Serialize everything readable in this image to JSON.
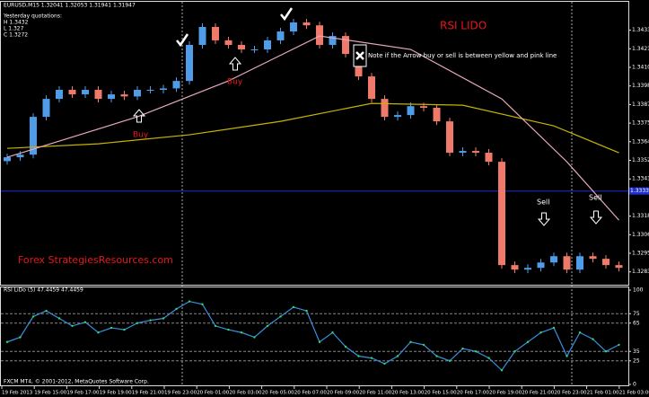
{
  "window_title": "EURUSD,M15  1.32041 1.32053 1.31941 1.31947",
  "yesterday": [
    "Yesterday quotations:",
    "H 1.3432",
    "L 1.327",
    "C 1.3272"
  ],
  "title": "RSI LIDO",
  "note": "Note if the Arrow buy or sell is between yellow and pink line",
  "buy_labels": [
    "Buy",
    "Buy"
  ],
  "sell_labels": [
    "Sell",
    "Sell"
  ],
  "watermark": "Forex StrategiesResources.com",
  "copyright": "FXCM MT4, © 2001-2012, MetaQuotes Software Corp.",
  "price_chart": {
    "type": "candlestick",
    "ylim": [
      1.3275,
      1.3445
    ],
    "yticks": [
      {
        "value": 1.3433,
        "label": "1.34330"
      },
      {
        "value": 1.34215,
        "label": "1.34215"
      },
      {
        "value": 1.341,
        "label": "1.34100"
      },
      {
        "value": 1.33985,
        "label": "1.33985"
      },
      {
        "value": 1.3387,
        "label": "1.33870"
      },
      {
        "value": 1.33755,
        "label": "1.33755"
      },
      {
        "value": 1.3364,
        "label": "1.33640"
      },
      {
        "value": 1.33525,
        "label": "1.33525"
      },
      {
        "value": 1.3341,
        "label": "1.33410"
      },
      {
        "value": 1.3318,
        "label": "1.33180"
      },
      {
        "value": 1.33065,
        "label": "1.33065"
      },
      {
        "value": 1.3295,
        "label": "1.32950"
      },
      {
        "value": 1.32835,
        "label": "1.32835"
      }
    ],
    "hline": {
      "value": 1.33335,
      "label": "1.33335",
      "color": "#1f2fd0"
    },
    "up_color": "#4f9de8",
    "down_color": "#f07a6a",
    "first_open": 1.3352,
    "closes": [
      1.33544,
      1.3356,
      1.33794,
      1.33905,
      1.33961,
      1.33933,
      1.33961,
      1.33905,
      1.33933,
      1.3392,
      1.33961,
      1.33961,
      1.3397,
      1.34016,
      1.34239,
      1.3435,
      1.34267,
      1.34239,
      1.34211,
      1.34211,
      1.34267,
      1.34322,
      1.34378,
      1.3436,
      1.34239,
      1.34294,
      1.34183,
      1.34044,
      1.33905,
      1.33794,
      1.33805,
      1.3386,
      1.3385,
      1.33766,
      1.33572,
      1.33583,
      1.33572,
      1.33516,
      1.32877,
      1.32849,
      1.3286,
      1.32893,
      1.32932,
      1.32849,
      1.32932,
      1.32916,
      1.32877,
      1.3286
    ],
    "lines": [
      {
        "color": "#c8b400",
        "x": [
          0,
          7,
          14,
          21,
          28,
          35,
          42,
          47
        ],
        "values": [
          1.33599,
          1.33627,
          1.33683,
          1.33766,
          1.33877,
          1.33866,
          1.33738,
          1.33572
        ]
      },
      {
        "color": "#e8a8c0",
        "x": [
          0,
          10,
          17,
          24,
          31,
          38,
          43,
          47
        ],
        "values": [
          1.33544,
          1.33794,
          1.34016,
          1.34294,
          1.34211,
          1.33905,
          1.33516,
          1.33155
        ]
      }
    ]
  },
  "rsi": {
    "type": "line",
    "title": "RSI LiDo (5) 47.4459 47.4459",
    "ylim": [
      0,
      100
    ],
    "yticks": [
      0,
      25,
      35,
      65,
      75,
      100
    ],
    "levels": [
      25,
      35,
      65,
      75
    ],
    "color": "#3a8fe0",
    "dot_color": "#22dd66",
    "values": [
      45,
      50,
      72,
      78,
      70,
      62,
      66,
      55,
      60,
      58,
      65,
      68,
      70,
      80,
      88,
      85,
      62,
      58,
      55,
      50,
      62,
      72,
      82,
      78,
      45,
      55,
      40,
      30,
      28,
      22,
      30,
      45,
      42,
      30,
      25,
      38,
      35,
      28,
      15,
      35,
      45,
      55,
      60,
      30,
      55,
      48,
      35,
      42
    ]
  },
  "x_labels": [
    "19 Feb 2013",
    "19 Feb 15:00",
    "19 Feb 17:00",
    "19 Feb 19:00",
    "19 Feb 21:00",
    "19 Feb 23:00",
    "20 Feb 01:00",
    "20 Feb 03:00",
    "20 Feb 05:00",
    "20 Feb 07:00",
    "20 Feb 09:00",
    "20 Feb 11:00",
    "20 Feb 13:00",
    "20 Feb 15:00",
    "20 Feb 17:00",
    "20 Feb 19:00",
    "20 Feb 21:00",
    "20 Feb 23:00",
    "21 Feb 01:00",
    "21 Feb 03:00"
  ]
}
